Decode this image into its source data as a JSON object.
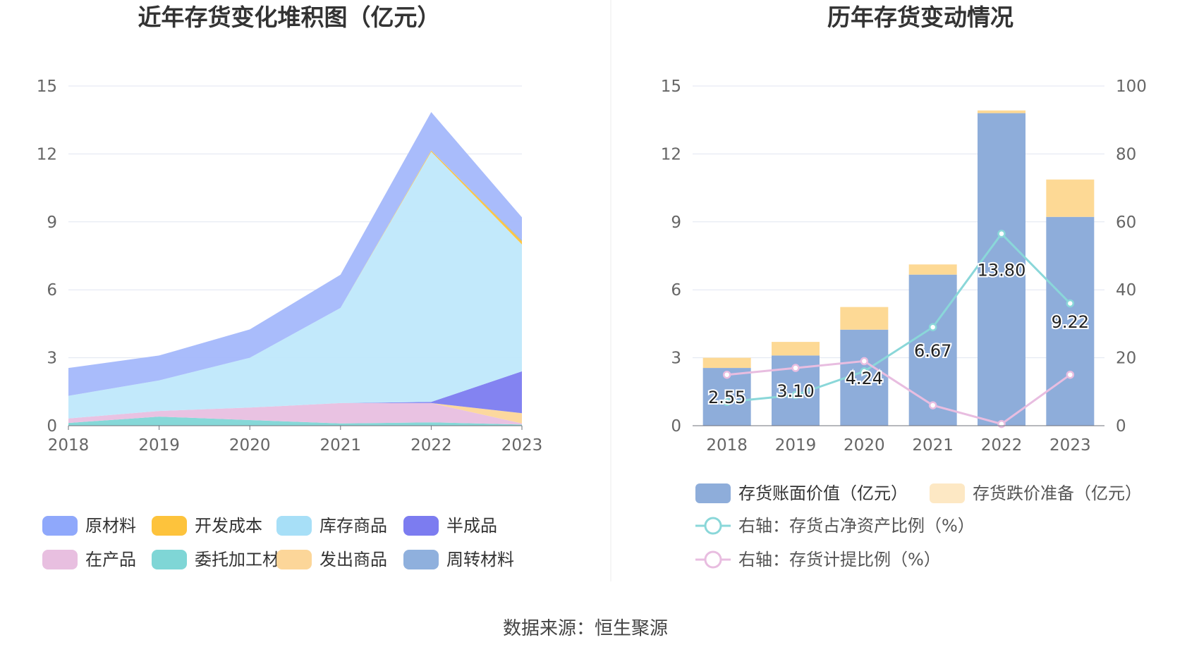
{
  "source": "数据来源：恒生聚源",
  "chart_data": [
    {
      "type": "area",
      "stacked": true,
      "title": "近年存货变化堆积图（亿元）",
      "categories": [
        "2018",
        "2019",
        "2020",
        "2021",
        "2022",
        "2023"
      ],
      "ylim": [
        0,
        15
      ],
      "yticks": [
        "0",
        "3",
        "6",
        "9",
        "12",
        "15"
      ],
      "series": [
        {
          "name": "委托加工材料",
          "color": "#7fd6d6",
          "values": [
            0.12,
            0.4,
            0.25,
            0.1,
            0.15,
            0.05
          ]
        },
        {
          "name": "在产品",
          "color": "#e8bfe0",
          "values": [
            0.2,
            0.25,
            0.55,
            0.9,
            0.85,
            0.05
          ]
        },
        {
          "name": "发出商品",
          "color": "#fcd699",
          "values": [
            0,
            0,
            0,
            0,
            0,
            0.45
          ]
        },
        {
          "name": "半成品",
          "color": "#7c7cf0",
          "values": [
            0,
            0,
            0,
            0,
            0.05,
            1.85
          ]
        },
        {
          "name": "库存商品",
          "color": "#bfe8fb",
          "values": [
            1.0,
            1.35,
            2.2,
            4.2,
            11.05,
            5.6
          ]
        },
        {
          "name": "开发成本",
          "color": "#fdc33c",
          "values": [
            0,
            0,
            0,
            0,
            0.05,
            0.15
          ]
        },
        {
          "name": "周转材料",
          "color": "#8fb0dd",
          "values": [
            0,
            0,
            0,
            0,
            0,
            0.05
          ]
        },
        {
          "name": "原材料",
          "color": "#a4b8fb",
          "values": [
            1.23,
            1.1,
            1.25,
            1.47,
            1.7,
            1.0
          ]
        }
      ],
      "legend": [
        {
          "name": "原材料",
          "color": "#8fa8fb"
        },
        {
          "name": "开发成本",
          "color": "#fdc33c"
        },
        {
          "name": "库存商品",
          "color": "#a7dff7"
        },
        {
          "name": "半成品",
          "color": "#7c7cf0"
        },
        {
          "name": "在产品",
          "color": "#e8bfe0"
        },
        {
          "name": "委托加工材料",
          "color": "#7fd6d6"
        },
        {
          "name": "发出商品",
          "color": "#fcd699"
        },
        {
          "name": "周转材料",
          "color": "#8fb0dd"
        }
      ]
    },
    {
      "type": "bar",
      "title": "历年存货变动情况",
      "categories": [
        "2018",
        "2019",
        "2020",
        "2021",
        "2022",
        "2023"
      ],
      "ylim": [
        0,
        15
      ],
      "yticks": [
        "0",
        "3",
        "6",
        "9",
        "12",
        "15"
      ],
      "y2lim": [
        0,
        100
      ],
      "y2ticks": [
        "0",
        "20",
        "40",
        "60",
        "80",
        "100"
      ],
      "series": [
        {
          "name": "存货账面价值（亿元）",
          "color": "#8eadda",
          "values": [
            2.55,
            3.1,
            4.24,
            6.67,
            13.8,
            9.22
          ],
          "labels": [
            "2.55",
            "3.10",
            "4.24",
            "6.67",
            "13.80",
            "9.22"
          ]
        },
        {
          "name": "存货跌价准备（亿元）",
          "color": "#fdd995",
          "values": [
            0.45,
            0.6,
            1.0,
            0.45,
            0.12,
            1.65
          ]
        }
      ],
      "line_series": [
        {
          "name": "右轴：存货占净资产比例（%）",
          "color": "#8ad7d9",
          "axis": "right",
          "values": [
            7,
            9,
            16,
            29,
            56.5,
            36
          ]
        },
        {
          "name": "右轴：存货计提比例（%）",
          "color": "#e8bde0",
          "axis": "right",
          "values": [
            15,
            17,
            19,
            6,
            0.5,
            15
          ]
        }
      ]
    }
  ]
}
